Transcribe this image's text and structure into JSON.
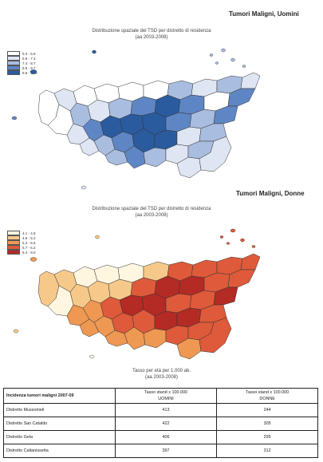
{
  "maps": [
    {
      "heading": "Tumori Maligni, Uomini",
      "title_line1": "Distribuzione spaziale del TSD per distretto di residenza",
      "title_line2": "(aa 2003-2008)",
      "legend": [
        {
          "label": "5.2 -  5.9",
          "color": "#ffffff"
        },
        {
          "label": "5.9 -  7.3",
          "color": "#dfe6f3"
        },
        {
          "label": "7.4 -  8.7",
          "color": "#a9bde0"
        },
        {
          "label": "8.8 -  9.7",
          "color": "#5f86c4"
        },
        {
          "label": "9.8 - 11.6",
          "color": "#2a5b9e"
        }
      ]
    },
    {
      "heading": "Tumori Maligni, Donne",
      "title_line1": "Distribuzione spaziale del TSD per distretto di residenza",
      "title_line2": "(aa 2003-2008)",
      "legend": [
        {
          "label": "4.1 -  4.8",
          "color": "#fff6e0"
        },
        {
          "label": "4.8 -  5.2",
          "color": "#f6c98a"
        },
        {
          "label": "5.2 -  5.6",
          "color": "#ee9852"
        },
        {
          "label": "5.7 -  6.2",
          "color": "#de5a3a"
        },
        {
          "label": "6.4 -  9.0",
          "color": "#b42a25"
        }
      ],
      "caption_line1": "Tasso per età per 1.000 ab.",
      "caption_line2": "(aa 2003-2008)"
    }
  ],
  "table": {
    "header": {
      "col1": "Incidenza tumori maligni     2007-09",
      "col2_line1": "Tasso stand x 100.000",
      "col2_line2": "UOMINI",
      "col3_line1": "Tasso stand x 100.000",
      "col3_line2": "DONNE"
    },
    "rows": [
      {
        "label": "Distretto Mussomeli",
        "uomini": "413",
        "donne": "244"
      },
      {
        "label": "Distretto San Cataldo",
        "uomini": "422",
        "donne": "305"
      },
      {
        "label": "Distretto Gela",
        "uomini": "406",
        "donne": "295"
      },
      {
        "label": "Distretto Caltanissetta",
        "uomini": "397",
        "donne": "312"
      }
    ]
  }
}
